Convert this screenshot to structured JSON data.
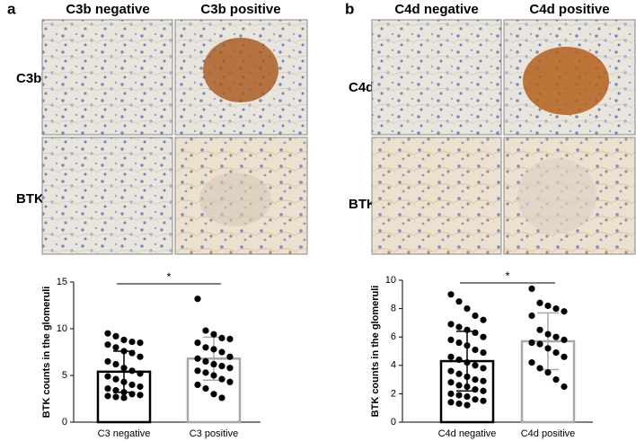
{
  "panels": [
    {
      "label": "a",
      "columns": [
        "C3b negative",
        "C3b positive"
      ],
      "rows": [
        "C3b",
        "BTK"
      ]
    },
    {
      "label": "b",
      "columns": [
        "C4d negative",
        "C4d positive"
      ],
      "rows": [
        "C4d",
        "BTK"
      ]
    }
  ],
  "chart_data": [
    {
      "type": "bar",
      "y_label": "BTK counts in the glomeruli",
      "annotation": "*",
      "categories": [
        "C3 negative",
        "C3 positive"
      ],
      "values": [
        5.4,
        6.8
      ],
      "errors": [
        2.2,
        2.3
      ],
      "colors": [
        "#000000",
        "#a8a8a8"
      ],
      "points": [
        [
          9.5,
          9.2,
          8.8,
          8.6,
          8.5,
          8.3,
          8.0,
          7.6,
          7.4,
          7.0,
          6.5,
          6.2,
          5.8,
          5.5,
          5.2,
          4.9,
          4.6,
          4.3,
          4.0,
          3.8,
          3.6,
          3.4,
          3.2,
          3.0,
          2.9,
          2.8,
          2.7,
          2.6
        ],
        [
          13.2,
          9.8,
          9.4,
          9.0,
          8.9,
          8.5,
          8.0,
          7.8,
          7.5,
          7.0,
          6.8,
          6.5,
          6.2,
          6.0,
          5.8,
          5.5,
          5.3,
          5.0,
          4.6,
          4.3,
          4.0,
          3.6,
          3.0,
          2.6
        ]
      ],
      "ylim": [
        0,
        15
      ],
      "yticks": [
        0,
        5,
        10,
        15
      ]
    },
    {
      "type": "bar",
      "y_label": "BTK counts in the glomeruli",
      "annotation": "*",
      "categories": [
        "C4d negative",
        "C4d positive"
      ],
      "values": [
        4.3,
        5.7
      ],
      "errors": [
        2.1,
        2.0
      ],
      "colors": [
        "#000000",
        "#a8a8a8"
      ],
      "points": [
        [
          9.0,
          8.5,
          8.0,
          7.5,
          7.2,
          6.9,
          6.7,
          6.5,
          6.3,
          6.0,
          5.8,
          5.6,
          5.4,
          5.1,
          4.9,
          4.6,
          4.4,
          4.2,
          4.0,
          3.8,
          3.6,
          3.4,
          3.2,
          3.0,
          2.9,
          2.8,
          2.6,
          2.5,
          2.3,
          2.2,
          2.0,
          1.9,
          1.8,
          1.6,
          1.5,
          1.4,
          1.3,
          1.2
        ],
        [
          9.4,
          8.4,
          8.2,
          8.0,
          7.8,
          7.5,
          6.5,
          6.2,
          6.0,
          5.8,
          5.6,
          5.5,
          5.2,
          4.9,
          4.6,
          4.2,
          3.8,
          3.5,
          3.0,
          2.5
        ]
      ],
      "ylim": [
        0,
        10
      ],
      "yticks": [
        0,
        2,
        4,
        6,
        8,
        10
      ]
    }
  ]
}
